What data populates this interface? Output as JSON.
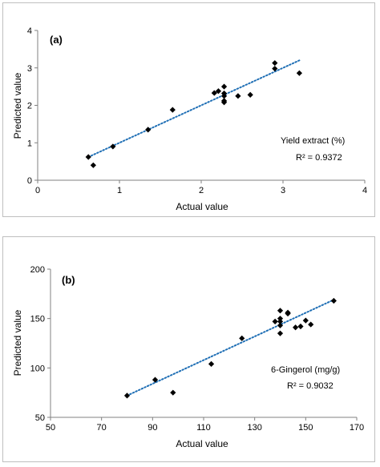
{
  "chart_data": [
    {
      "type": "scatter",
      "panel_label": "(a)",
      "xlabel": "Actual value",
      "ylabel": "Predicted value",
      "xlim": [
        0,
        4
      ],
      "ylim": [
        0,
        4
      ],
      "x_ticks": [
        "0",
        "1",
        "2",
        "3",
        "4"
      ],
      "y_ticks": [
        "0",
        "1",
        "2",
        "3",
        "4"
      ],
      "grid": false,
      "annotation_name": "Yield extract (%)",
      "annotation_r2": "R² = 0.9372",
      "trendline": {
        "style": "dotted",
        "color": "#1f6fb5",
        "from": [
          0.62,
          0.62
        ],
        "to": [
          3.2,
          3.2
        ]
      },
      "points": [
        {
          "x": 0.62,
          "y": 0.62
        },
        {
          "x": 0.68,
          "y": 0.4
        },
        {
          "x": 0.92,
          "y": 0.9
        },
        {
          "x": 1.35,
          "y": 1.35
        },
        {
          "x": 1.65,
          "y": 1.88
        },
        {
          "x": 2.16,
          "y": 2.33
        },
        {
          "x": 2.21,
          "y": 2.38
        },
        {
          "x": 2.28,
          "y": 2.5
        },
        {
          "x": 2.28,
          "y": 2.32
        },
        {
          "x": 2.28,
          "y": 2.25
        },
        {
          "x": 2.28,
          "y": 2.12
        },
        {
          "x": 2.28,
          "y": 2.08
        },
        {
          "x": 2.45,
          "y": 2.25
        },
        {
          "x": 2.6,
          "y": 2.28
        },
        {
          "x": 2.9,
          "y": 3.13
        },
        {
          "x": 2.9,
          "y": 2.98
        },
        {
          "x": 3.2,
          "y": 2.86
        }
      ]
    },
    {
      "type": "scatter",
      "panel_label": "(b)",
      "xlabel": "Actual value",
      "ylabel": "Predicted value",
      "xlim": [
        50,
        170
      ],
      "ylim": [
        50,
        200
      ],
      "x_ticks": [
        "50",
        "70",
        "90",
        "110",
        "130",
        "150",
        "170"
      ],
      "y_ticks": [
        "50",
        "100",
        "150",
        "200"
      ],
      "grid": false,
      "annotation_name": "6-Gingerol (mg/g)",
      "annotation_r2": "R² = 0.9032",
      "trendline": {
        "style": "dotted",
        "color": "#1f6fb5",
        "from": [
          80,
          72
        ],
        "to": [
          161,
          169
        ]
      },
      "points": [
        {
          "x": 80,
          "y": 72
        },
        {
          "x": 91,
          "y": 88
        },
        {
          "x": 98,
          "y": 75
        },
        {
          "x": 113,
          "y": 104
        },
        {
          "x": 125,
          "y": 130
        },
        {
          "x": 138,
          "y": 147
        },
        {
          "x": 140,
          "y": 158
        },
        {
          "x": 140,
          "y": 150
        },
        {
          "x": 140,
          "y": 147
        },
        {
          "x": 140,
          "y": 143
        },
        {
          "x": 140,
          "y": 135
        },
        {
          "x": 143,
          "y": 155
        },
        {
          "x": 143,
          "y": 156
        },
        {
          "x": 146,
          "y": 141
        },
        {
          "x": 148,
          "y": 142
        },
        {
          "x": 150,
          "y": 148
        },
        {
          "x": 152,
          "y": 144
        },
        {
          "x": 161,
          "y": 168
        }
      ]
    }
  ]
}
